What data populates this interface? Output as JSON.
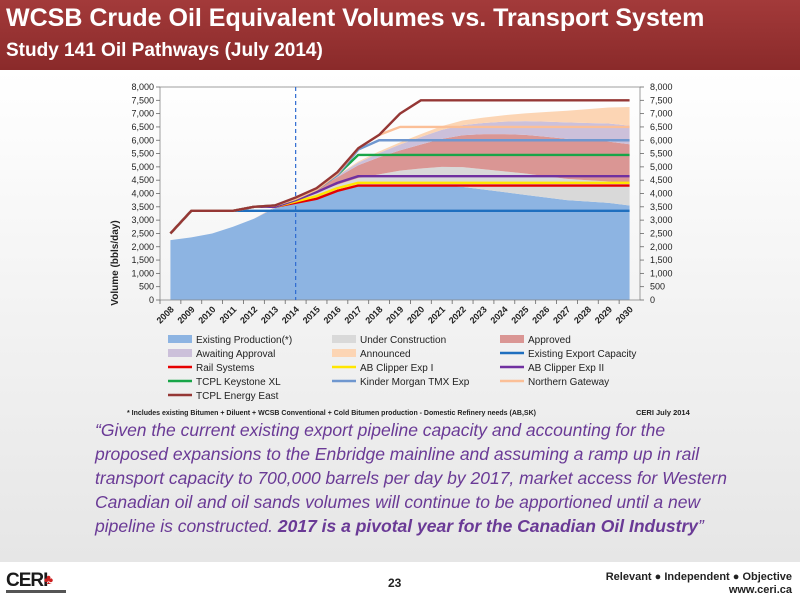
{
  "slide": {
    "title": "WCSB Crude Oil Equivalent Volumes vs. Transport System",
    "subtitle": "Study 141 Oil Pathways (July 2014)",
    "footnote": "* Includes existing Bitumen + Diluent + WCSB Conventional + Cold Bitumen production - Domestic Refinery needs (AB,SK)",
    "source_note": "CERI July 2014",
    "quote_text": "“Given the current existing export pipeline capacity and accounting for the proposed expansions to the Enbridge mainline and assuming a ramp up in rail transport capacity to 700,000 barrels per day by 2017, market access for Western Canadian oil and oil sands volumes will continue to be apportioned until a new pipeline is constructed. ",
    "quote_emphasis": "2017 is a pivotal year for the Canadian Oil Industry",
    "quote_close": "”",
    "page_number": "23",
    "tagline": "Relevant ● Independent ● Objective",
    "website": "www.ceri.ca",
    "logo_text": "CERI",
    "colors": {
      "band": "#a33a3a",
      "quote": "#6a3a96"
    }
  },
  "chart_data": {
    "type": "area",
    "ylabel": "Volume (bbls/day)",
    "ylim": [
      0,
      8000
    ],
    "yticks": [
      "0",
      "500",
      "1,000",
      "1,500",
      "2,000",
      "2,500",
      "3,000",
      "3,500",
      "4,000",
      "4,500",
      "5,000",
      "5,500",
      "6,000",
      "6,500",
      "7,000",
      "7,500",
      "8,000"
    ],
    "x": [
      2008,
      2009,
      2010,
      2011,
      2012,
      2013,
      2014,
      2015,
      2016,
      2017,
      2018,
      2019,
      2020,
      2021,
      2022,
      2023,
      2024,
      2025,
      2026,
      2027,
      2028,
      2029,
      2030
    ],
    "marker_year": 2014,
    "stacked_areas": [
      {
        "name": "Existing Production(*)",
        "color": "#8db4e2",
        "values": [
          2250,
          2350,
          2500,
          2750,
          3050,
          3450,
          3700,
          3950,
          4150,
          4300,
          4300,
          4300,
          4300,
          4300,
          4250,
          4150,
          4050,
          3950,
          3850,
          3750,
          3700,
          3650,
          3550
        ]
      },
      {
        "name": "Under Construction",
        "color": "#d9d9d9",
        "values": [
          0,
          0,
          0,
          0,
          0,
          20,
          60,
          100,
          180,
          280,
          420,
          560,
          640,
          700,
          740,
          760,
          780,
          800,
          800,
          800,
          800,
          800,
          800
        ]
      },
      {
        "name": "Approved",
        "color": "#da9694",
        "values": [
          0,
          0,
          0,
          0,
          0,
          20,
          50,
          120,
          280,
          480,
          640,
          760,
          900,
          1050,
          1200,
          1320,
          1400,
          1450,
          1480,
          1500,
          1500,
          1500,
          1500
        ]
      },
      {
        "name": "Awaiting Approval",
        "color": "#ccc0da",
        "values": [
          0,
          0,
          0,
          0,
          0,
          0,
          10,
          30,
          60,
          100,
          160,
          220,
          280,
          340,
          380,
          420,
          470,
          520,
          570,
          620,
          650,
          680,
          700
        ]
      },
      {
        "name": "Announced",
        "color": "#fcd5b4",
        "values": [
          0,
          0,
          0,
          0,
          0,
          0,
          0,
          10,
          20,
          40,
          60,
          80,
          110,
          140,
          170,
          200,
          240,
          290,
          360,
          440,
          520,
          600,
          700
        ]
      }
    ],
    "lines": [
      {
        "name": "Existing Export Capacity",
        "color": "#1f6fbf",
        "values": [
          2500,
          3350,
          3350,
          3350,
          3350,
          3350,
          3350,
          3350,
          3350,
          3350,
          3350,
          3350,
          3350,
          3350,
          3350,
          3350,
          3350,
          3350,
          3350,
          3350,
          3350,
          3350,
          3350
        ]
      },
      {
        "name": "Rail Systems",
        "color": "#e60000",
        "values": [
          2500,
          3350,
          3350,
          3350,
          3500,
          3500,
          3650,
          3800,
          4100,
          4300,
          4300,
          4300,
          4300,
          4300,
          4300,
          4300,
          4300,
          4300,
          4300,
          4300,
          4300,
          4300,
          4300
        ]
      },
      {
        "name": "AB Clipper Exp I",
        "color": "#ffe600",
        "values": [
          2500,
          3350,
          3350,
          3350,
          3500,
          3500,
          3700,
          3900,
          4200,
          4400,
          4400,
          4400,
          4400,
          4400,
          4400,
          4400,
          4400,
          4400,
          4400,
          4400,
          4400,
          4400,
          4400
        ]
      },
      {
        "name": "AB Clipper Exp II",
        "color": "#7030a0",
        "values": [
          2500,
          3350,
          3350,
          3350,
          3500,
          3500,
          3750,
          4050,
          4400,
          4650,
          4650,
          4650,
          4650,
          4650,
          4650,
          4650,
          4650,
          4650,
          4650,
          4650,
          4650,
          4650,
          4650
        ]
      },
      {
        "name": "TCPL Keystone XL",
        "color": "#18a548",
        "values": [
          2500,
          3350,
          3350,
          3350,
          3500,
          3550,
          3800,
          4150,
          4700,
          5450,
          5450,
          5450,
          5450,
          5450,
          5450,
          5450,
          5450,
          5450,
          5450,
          5450,
          5450,
          5450,
          5450
        ]
      },
      {
        "name": "Kinder Morgan TMX Exp",
        "color": "#6f97cf",
        "values": [
          2500,
          3350,
          3350,
          3350,
          3500,
          3550,
          3800,
          4150,
          4700,
          5650,
          6000,
          6000,
          6000,
          6000,
          6000,
          6000,
          6000,
          6000,
          6000,
          6000,
          6000,
          6000,
          6000
        ]
      },
      {
        "name": "Northern Gateway",
        "color": "#fbbf97",
        "values": [
          2500,
          3350,
          3350,
          3350,
          3500,
          3550,
          3800,
          4150,
          4750,
          5700,
          6200,
          6500,
          6500,
          6500,
          6500,
          6500,
          6500,
          6500,
          6500,
          6500,
          6500,
          6500,
          6500
        ]
      },
      {
        "name": "TCPL Energy East",
        "color": "#953735",
        "values": [
          2500,
          3350,
          3350,
          3350,
          3500,
          3550,
          3850,
          4200,
          4800,
          5700,
          6200,
          7000,
          7500,
          7500,
          7500,
          7500,
          7500,
          7500,
          7500,
          7500,
          7500,
          7500,
          7500
        ]
      }
    ],
    "legend": [
      {
        "name": "Existing Production(*)",
        "kind": "area",
        "color": "#8db4e2"
      },
      {
        "name": "Under Construction",
        "kind": "area",
        "color": "#d9d9d9"
      },
      {
        "name": "Approved",
        "kind": "area",
        "color": "#da9694"
      },
      {
        "name": "Awaiting Approval",
        "kind": "area",
        "color": "#ccc0da"
      },
      {
        "name": "Announced",
        "kind": "area",
        "color": "#fcd5b4"
      },
      {
        "name": "Existing Export Capacity",
        "kind": "line",
        "color": "#1f6fbf"
      },
      {
        "name": "Rail Systems",
        "kind": "line",
        "color": "#e60000"
      },
      {
        "name": "AB Clipper Exp I",
        "kind": "line",
        "color": "#ffe600"
      },
      {
        "name": "AB Clipper Exp II",
        "kind": "line",
        "color": "#7030a0"
      },
      {
        "name": "TCPL Keystone XL",
        "kind": "line",
        "color": "#18a548"
      },
      {
        "name": "Kinder Morgan TMX Exp",
        "kind": "line",
        "color": "#6f97cf"
      },
      {
        "name": "Northern Gateway",
        "kind": "line",
        "color": "#fbbf97"
      },
      {
        "name": "TCPL Energy East",
        "kind": "line",
        "color": "#953735"
      }
    ]
  }
}
